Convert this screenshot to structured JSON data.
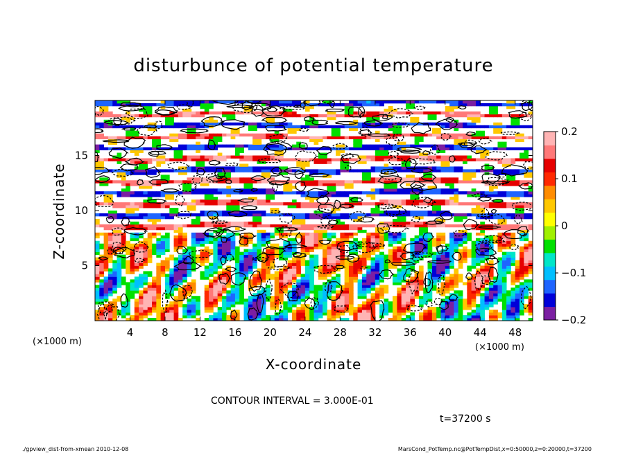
{
  "chart_data": {
    "type": "heatmap",
    "title": "disturbunce of potential temperature",
    "xlabel": "X-coordinate",
    "ylabel": "Z-coordinate",
    "x_unit": "(×1000 m)",
    "z_unit": "(×1000 m)",
    "xlim": [
      0,
      50
    ],
    "ylim": [
      0,
      20
    ],
    "x_ticks": [
      4,
      8,
      12,
      16,
      20,
      24,
      28,
      32,
      36,
      40,
      44,
      48
    ],
    "y_ticks": [
      5,
      10,
      15
    ],
    "colorbar": {
      "range": [
        -0.2,
        0.2
      ],
      "ticks": [
        0.2,
        0.1,
        0,
        -0.1,
        -0.2
      ],
      "tick_labels": [
        "0.2",
        "0.1",
        "0",
        "−0.1",
        "−0.2"
      ],
      "colors": [
        "#7b1fa2",
        "#0000d8",
        "#1e64ff",
        "#00bfff",
        "#00e6c8",
        "#00e000",
        "#a0f000",
        "#ffff00",
        "#ffc800",
        "#ff8c00",
        "#ff2800",
        "#e60000",
        "#ff7878",
        "#ffb4b4"
      ]
    },
    "contour_interval_text": "CONTOUR INTERVAL = 3.000E-01",
    "time_text": "t=37200 s",
    "grid": false
  },
  "footer": {
    "left": "./gpview_dist-from-xmean   2010-12-08",
    "right": "MarsCond_PotTemp.nc@PotTempDist,x=0:50000,z=0:20000,t=37200"
  }
}
